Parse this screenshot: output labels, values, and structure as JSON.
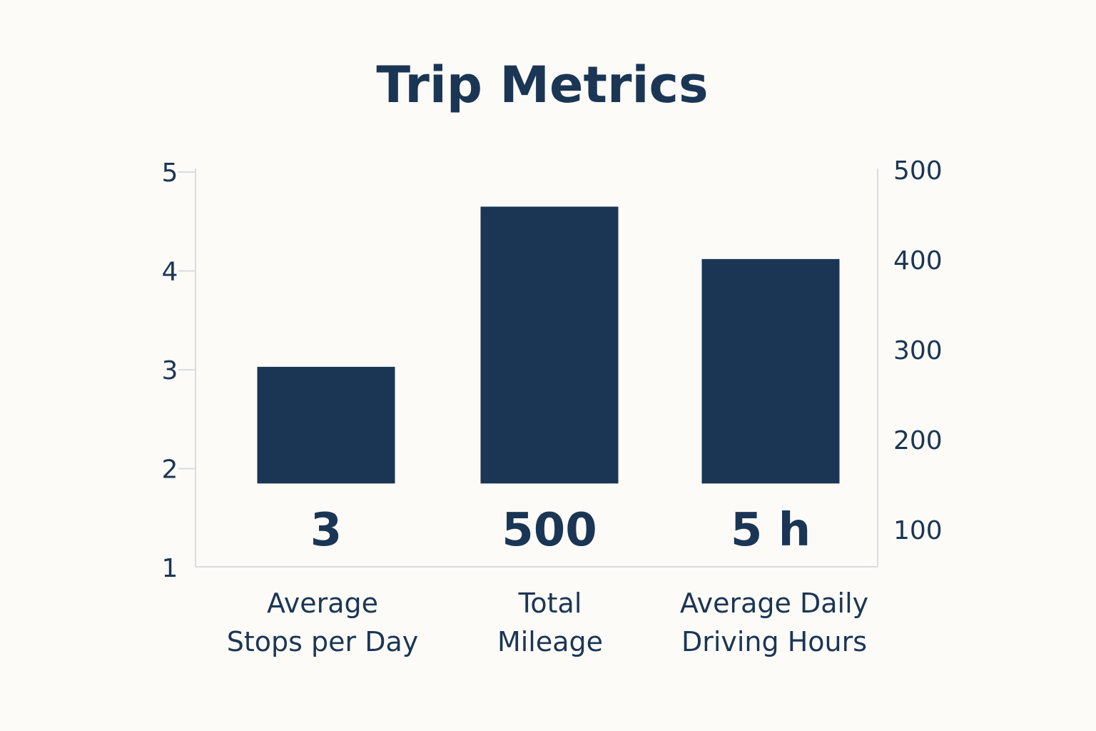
{
  "chart_data": {
    "type": "bar",
    "title": "Trip Metrics",
    "categories": [
      [
        "Average",
        "Stops per Day"
      ],
      [
        "Total",
        "Mileage"
      ],
      [
        "Average Daily",
        "Driving Hours"
      ]
    ],
    "values": [
      3,
      500,
      5
    ],
    "value_labels": [
      "3",
      "500",
      "5 h"
    ],
    "apparent_heights_left_axis": [
      3.03,
      4.65,
      4.12
    ],
    "left_axis": {
      "ticks": [
        1,
        2,
        3,
        4,
        5
      ],
      "tick_labels": [
        "1",
        "2",
        "3",
        "4",
        "5"
      ],
      "range": [
        1,
        5
      ]
    },
    "right_axis": {
      "ticks": [
        100,
        200,
        300,
        400,
        500
      ],
      "tick_labels": [
        "100",
        "200",
        "300",
        "400",
        "500"
      ]
    },
    "bar_baseline_left_axis": 1.85,
    "grid": false,
    "legend": "none"
  },
  "colors": {
    "background": "#fcfbf8",
    "bar": "#1b3654",
    "text": "#1b3654",
    "axis": "#d9dcdf"
  }
}
